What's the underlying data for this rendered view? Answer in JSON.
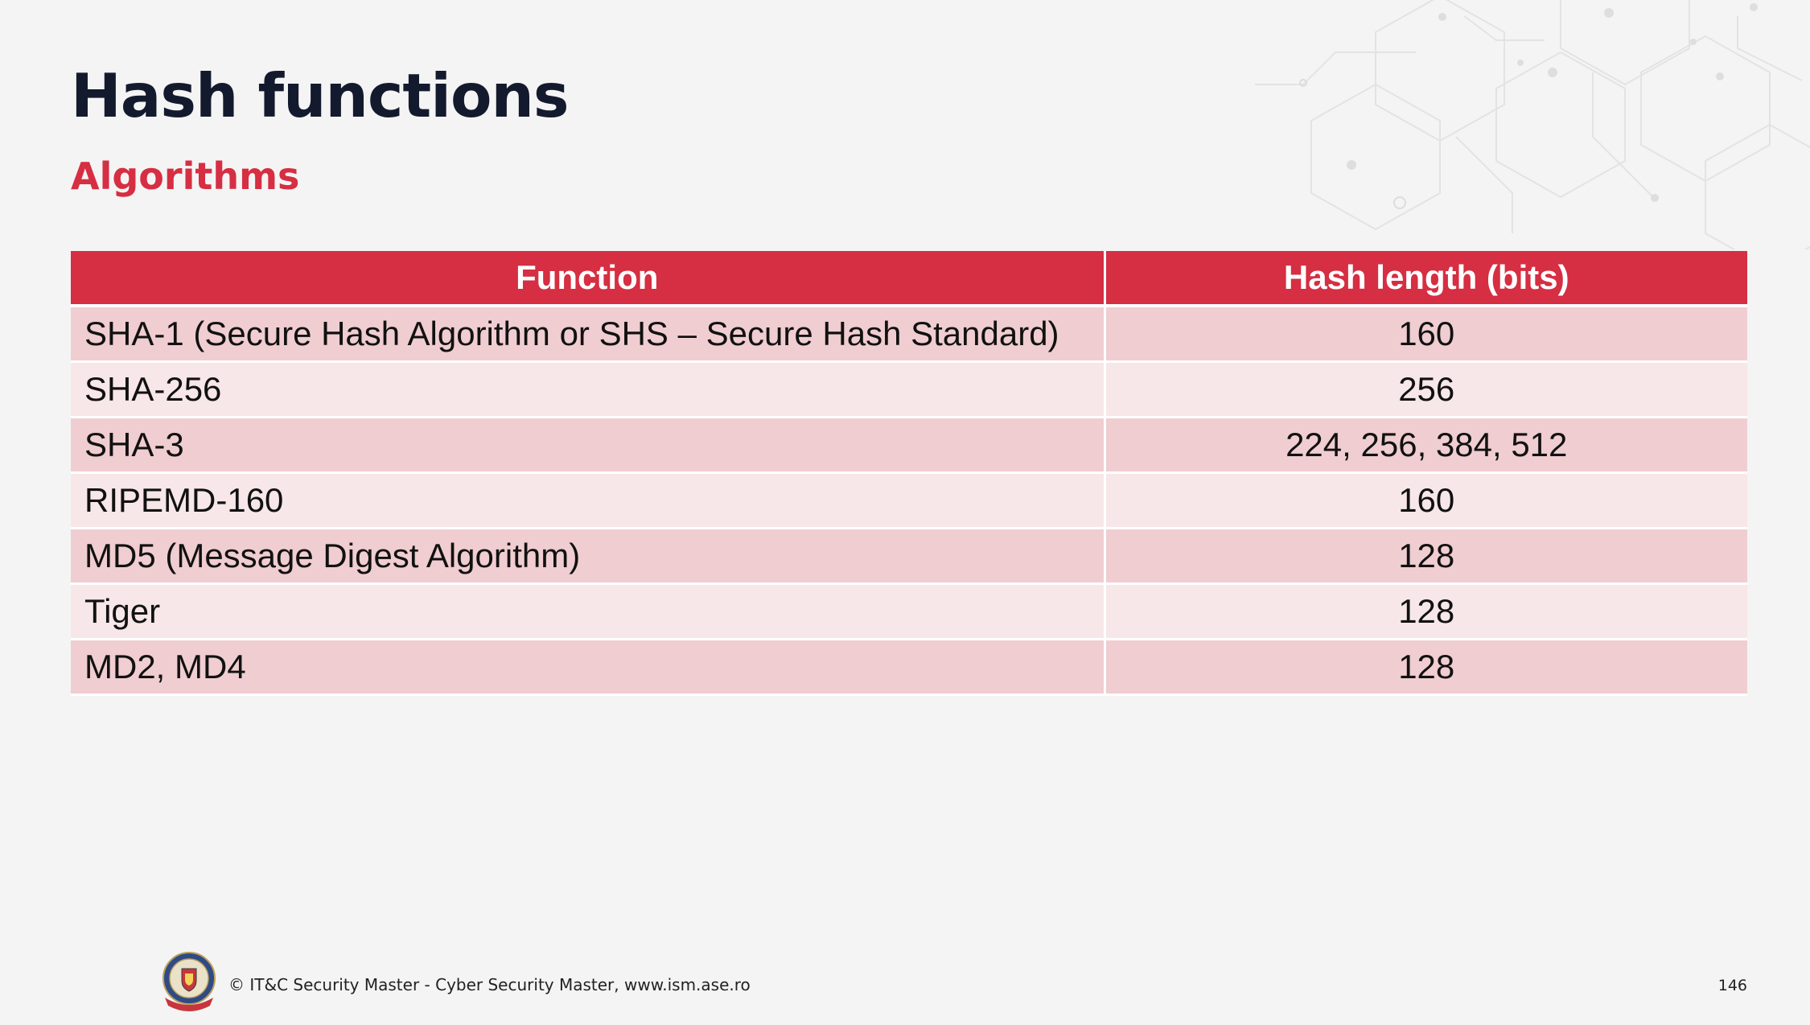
{
  "slide": {
    "title": "Hash functions",
    "subtitle": "Algorithms"
  },
  "table": {
    "headers": [
      "Function",
      "Hash length (bits)"
    ],
    "rows": [
      {
        "function": "SHA-1 (Secure Hash Algorithm or SHS – Secure Hash Standard)",
        "length": "160"
      },
      {
        "function": "SHA-256",
        "length": "256"
      },
      {
        "function": "SHA-3",
        "length": "224, 256, 384, 512"
      },
      {
        "function": "RIPEMD-160",
        "length": "160"
      },
      {
        "function": "MD5 (Message Digest Algorithm)",
        "length": "128"
      },
      {
        "function": "Tiger",
        "length": "128"
      },
      {
        "function": "MD2, MD4",
        "length": "128"
      }
    ]
  },
  "footer": {
    "copyright": "© IT&C Security Master - Cyber Security Master, www.ism.ase.ro",
    "page_number": "146",
    "logo_icon": "security-master-crest-icon"
  },
  "colors": {
    "title": "#141a2e",
    "accent": "#d62e42",
    "row_odd": "#f0cdd1",
    "row_even": "#f8e7e8",
    "background": "#f4f4f4"
  }
}
